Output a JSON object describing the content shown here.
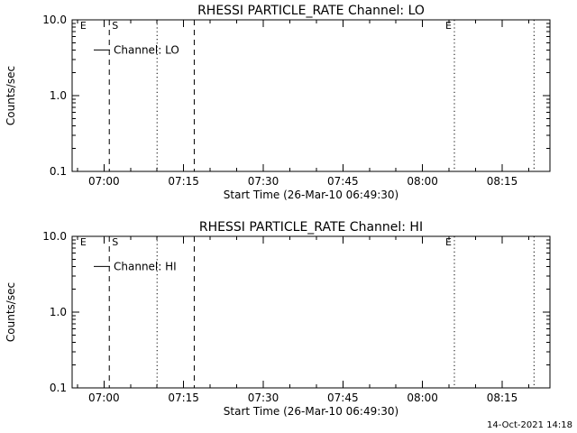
{
  "page": {
    "background": "#ffffff",
    "line_color": "#000000",
    "footer_timestamp": "14-Oct-2021 14:18"
  },
  "chart_data": [
    {
      "type": "line",
      "title": "RHESSI PARTICLE_RATE Channel: LO",
      "xlabel": "Start Time (26-Mar-10 06:49:30)",
      "ylabel": "Counts/sec",
      "y_scale": "log",
      "ylim": [
        0.1,
        10.0
      ],
      "grid": false,
      "legend_position": "upper-left-inside",
      "y_major_ticks": [
        {
          "value": 10.0,
          "label": "10.0"
        },
        {
          "value": 1.0,
          "label": "1.0"
        },
        {
          "value": 0.1,
          "label": "0.1"
        }
      ],
      "x_axis": {
        "start": "06:54",
        "end": "08:24",
        "major_ticks": [
          "07:00",
          "07:15",
          "07:30",
          "07:45",
          "08:00",
          "08:15"
        ],
        "minor_tick_minutes": 5
      },
      "legend": {
        "label": "Channel: LO",
        "y_value": 4.0
      },
      "series": [
        {
          "name": "Channel: LO",
          "points": []
        }
      ],
      "markers": [
        {
          "time": "06:55",
          "style": "none",
          "label": "E",
          "label_side": "right"
        },
        {
          "time": "07:01",
          "style": "dashed",
          "label": "S",
          "label_side": "right"
        },
        {
          "time": "07:10",
          "style": "dotted",
          "label": "",
          "label_side": "right"
        },
        {
          "time": "07:17",
          "style": "dashed",
          "label": "",
          "label_side": "right"
        },
        {
          "time": "08:06",
          "style": "dotted",
          "label": "E",
          "label_side": "left"
        },
        {
          "time": "08:21",
          "style": "dotted",
          "label": "",
          "label_side": "right"
        }
      ]
    },
    {
      "type": "line",
      "title": "RHESSI PARTICLE_RATE Channel: HI",
      "xlabel": "Start Time (26-Mar-10 06:49:30)",
      "ylabel": "Counts/sec",
      "y_scale": "log",
      "ylim": [
        0.1,
        10.0
      ],
      "grid": false,
      "legend_position": "upper-left-inside",
      "y_major_ticks": [
        {
          "value": 10.0,
          "label": "10.0"
        },
        {
          "value": 1.0,
          "label": "1.0"
        },
        {
          "value": 0.1,
          "label": "0.1"
        }
      ],
      "x_axis": {
        "start": "06:54",
        "end": "08:24",
        "major_ticks": [
          "07:00",
          "07:15",
          "07:30",
          "07:45",
          "08:00",
          "08:15"
        ],
        "minor_tick_minutes": 5
      },
      "legend": {
        "label": "Channel: HI",
        "y_value": 4.0
      },
      "series": [
        {
          "name": "Channel: HI",
          "points": []
        }
      ],
      "markers": [
        {
          "time": "06:55",
          "style": "none",
          "label": "E",
          "label_side": "right"
        },
        {
          "time": "07:01",
          "style": "dashed",
          "label": "S",
          "label_side": "right"
        },
        {
          "time": "07:10",
          "style": "dotted",
          "label": "",
          "label_side": "right"
        },
        {
          "time": "07:17",
          "style": "dashed",
          "label": "",
          "label_side": "right"
        },
        {
          "time": "08:06",
          "style": "dotted",
          "label": "E",
          "label_side": "left"
        },
        {
          "time": "08:21",
          "style": "dotted",
          "label": "",
          "label_side": "right"
        }
      ]
    }
  ]
}
